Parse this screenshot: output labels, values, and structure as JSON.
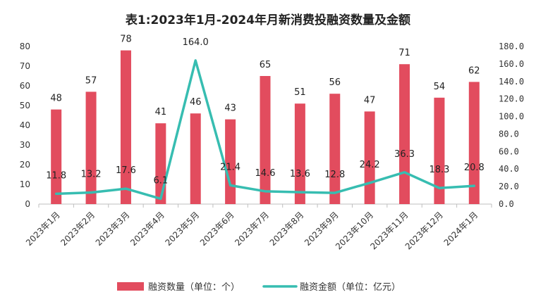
{
  "chart_data": {
    "type": "bar+line",
    "title": "表1:2023年1月-2024年月新消费投融资数量及金额",
    "categories": [
      "2023年1月",
      "2023年2月",
      "2023年3月",
      "2023年4月",
      "2023年5月",
      "2023年6月",
      "2023年7月",
      "2023年8月",
      "2023年9月",
      "2023年10月",
      "2023年11月",
      "2023年12月",
      "2024年1月"
    ],
    "series": [
      {
        "name": "融资数量（单位：个）",
        "type": "bar",
        "axis": "left",
        "values": [
          48,
          57,
          78,
          41,
          46,
          43,
          65,
          51,
          56,
          47,
          71,
          54,
          62
        ],
        "labels": [
          "48",
          "57",
          "78",
          "41",
          "46",
          "43",
          "65",
          "51",
          "56",
          "47",
          "71",
          "54",
          "62"
        ]
      },
      {
        "name": "融资金额（单位：亿元）",
        "type": "line",
        "axis": "right",
        "values": [
          11.8,
          13.2,
          17.6,
          6.1,
          164.0,
          21.4,
          14.6,
          13.6,
          12.8,
          24.2,
          36.3,
          18.3,
          20.8
        ],
        "labels": [
          "11.8",
          "13.2",
          "17.6",
          "6.1",
          "164.0",
          "21.4",
          "14.6",
          "13.6",
          "12.8",
          "24.2",
          "36.3",
          "18.3",
          "20.8"
        ]
      }
    ],
    "y_left": {
      "min": 0,
      "max": 80,
      "ticks": [
        "0",
        "10",
        "20",
        "30",
        "40",
        "50",
        "60",
        "70",
        "80"
      ]
    },
    "y_right": {
      "min": 0,
      "max": 180,
      "ticks": [
        "0.0",
        "20.0",
        "40.0",
        "60.0",
        "80.0",
        "100.0",
        "120.0",
        "140.0",
        "160.0",
        "180.0"
      ]
    },
    "grid": false,
    "legend_position": "bottom-center",
    "colors": {
      "bar": "#e24c5e",
      "line": "#37bdb1",
      "axis": "#bfbfbf"
    }
  }
}
